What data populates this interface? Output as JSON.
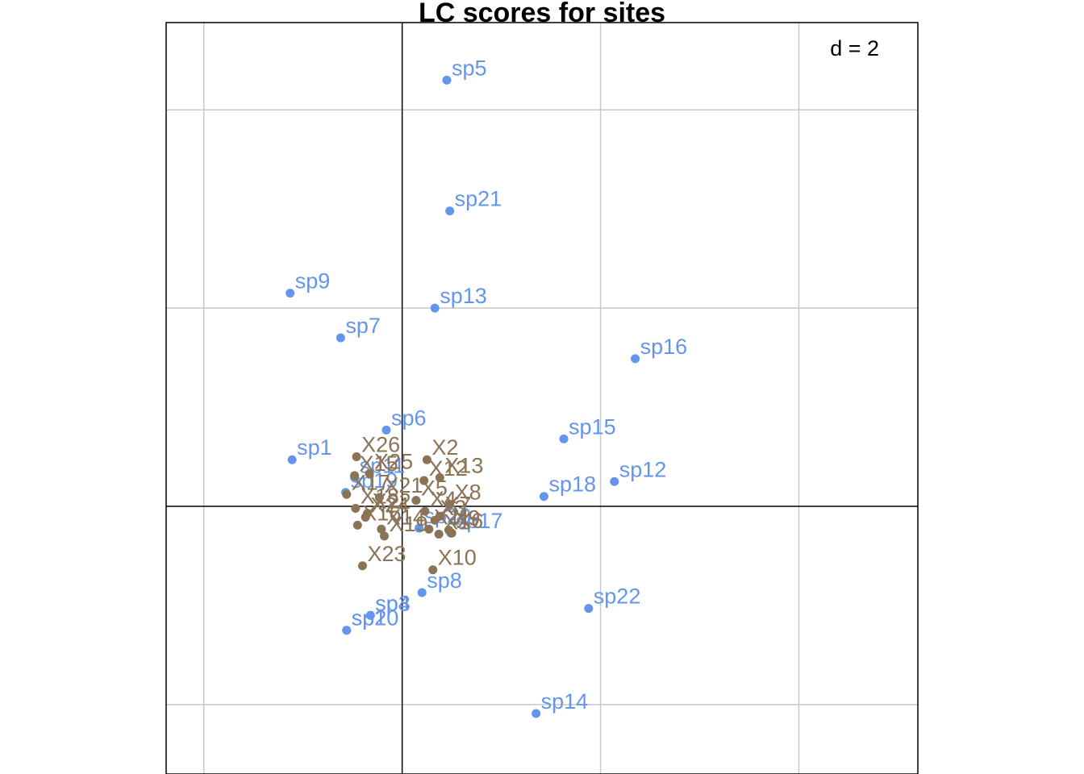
{
  "chart_data": {
    "type": "scatter",
    "title": "LC scores for sites",
    "scale_label": "d = 2",
    "grid_step": 2,
    "xlim": [
      -2.38,
      5.2
    ],
    "ylim": [
      -2.7,
      4.88
    ],
    "grid": true,
    "axes_lines_at_zero": true,
    "series": [
      {
        "name": "",
        "color": "#6495ED",
        "points": [
          {
            "label": "sp5",
            "x": 0.45,
            "y": 4.3
          },
          {
            "label": "sp21",
            "x": 0.48,
            "y": 2.98
          },
          {
            "label": "sp9",
            "x": -1.13,
            "y": 2.15
          },
          {
            "label": "sp13",
            "x": 0.33,
            "y": 2.0
          },
          {
            "label": "sp7",
            "x": -0.62,
            "y": 1.7
          },
          {
            "label": "sp16",
            "x": 2.35,
            "y": 1.49
          },
          {
            "label": "sp15",
            "x": 1.63,
            "y": 0.68
          },
          {
            "label": "sp6",
            "x": -0.16,
            "y": 0.77
          },
          {
            "label": "sp1",
            "x": -1.11,
            "y": 0.47
          },
          {
            "label": "sp11",
            "x": -0.48,
            "y": 0.29
          },
          {
            "label": "sp12",
            "x": 2.14,
            "y": 0.25
          },
          {
            "label": "sp18",
            "x": 1.43,
            "y": 0.1
          },
          {
            "label": "sp19",
            "x": -0.57,
            "y": 0.14
          },
          {
            "label": "sp20",
            "x": 0.17,
            "y": -0.22
          },
          {
            "label": "sp17",
            "x": 0.49,
            "y": -0.27
          },
          {
            "label": "sp8",
            "x": 0.2,
            "y": -0.87
          },
          {
            "label": "sp3",
            "x": -0.32,
            "y": -1.1
          },
          {
            "label": "sp2",
            "x": -0.56,
            "y": -1.25
          },
          {
            "label": "sp10",
            "x": -0.56,
            "y": -1.25
          },
          {
            "label": "sp4",
            "x": -0.32,
            "y": -1.1
          },
          {
            "label": "sp22",
            "x": 1.88,
            "y": -1.03
          },
          {
            "label": "sp14",
            "x": 1.35,
            "y": -2.09
          }
        ]
      },
      {
        "name": "",
        "color": "#8B7355",
        "points": [
          {
            "label": "X26",
            "x": -0.46,
            "y": 0.5
          },
          {
            "label": "X15",
            "x": -0.48,
            "y": 0.31
          },
          {
            "label": "X25",
            "x": -0.33,
            "y": 0.33
          },
          {
            "label": "X2",
            "x": 0.25,
            "y": 0.47
          },
          {
            "label": "X13",
            "x": 0.38,
            "y": 0.29
          },
          {
            "label": "X12",
            "x": 0.22,
            "y": 0.26
          },
          {
            "label": "X17",
            "x": -0.56,
            "y": 0.12
          },
          {
            "label": "X21",
            "x": -0.23,
            "y": 0.09
          },
          {
            "label": "X5",
            "x": 0.14,
            "y": 0.06
          },
          {
            "label": "X4",
            "x": 0.23,
            "y": -0.05
          },
          {
            "label": "X8",
            "x": 0.48,
            "y": 0.02
          },
          {
            "label": "X18",
            "x": -0.47,
            "y": -0.02
          },
          {
            "label": "X22",
            "x": -0.35,
            "y": -0.07
          },
          {
            "label": "X24",
            "x": -0.37,
            "y": -0.11
          },
          {
            "label": "X16",
            "x": -0.45,
            "y": -0.19
          },
          {
            "label": "X3",
            "x": 0.33,
            "y": -0.14
          },
          {
            "label": "X7",
            "x": 0.38,
            "y": -0.1
          },
          {
            "label": "X14",
            "x": -0.21,
            "y": -0.23
          },
          {
            "label": "X11",
            "x": 0.27,
            "y": -0.23
          },
          {
            "label": "X9",
            "x": 0.47,
            "y": -0.24
          },
          {
            "label": "X1",
            "x": 0.37,
            "y": -0.28
          },
          {
            "label": "X6",
            "x": 0.5,
            "y": -0.27
          },
          {
            "label": "X19",
            "x": -0.18,
            "y": -0.3
          },
          {
            "label": "X23",
            "x": -0.4,
            "y": -0.6
          },
          {
            "label": "X10",
            "x": 0.31,
            "y": -0.64
          }
        ]
      }
    ]
  }
}
